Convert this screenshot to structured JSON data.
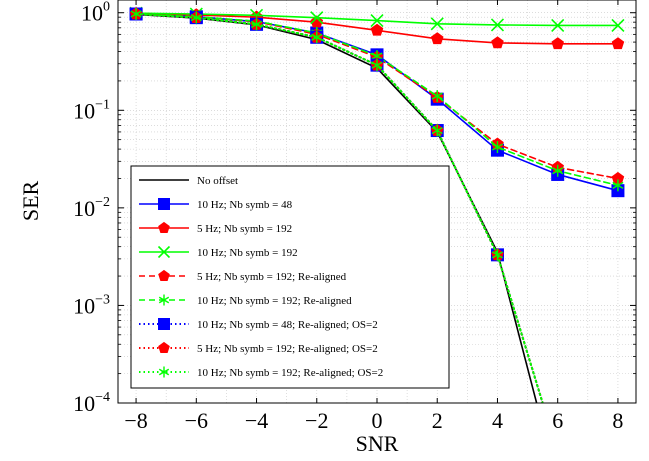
{
  "chart_data": {
    "type": "line",
    "title": "",
    "xlabel": "SNR",
    "ylabel": "SER",
    "xlim": [
      -8.6,
      8.6
    ],
    "ylim": [
      0.0001,
      1.35
    ],
    "yscale": "log",
    "grid": "on (dotted, minor)",
    "legend_position": "bottom-left",
    "x_ticks": [
      -8,
      -6,
      -4,
      -2,
      0,
      2,
      4,
      6,
      8
    ],
    "x_tick_labels": [
      "−8",
      "−6",
      "−4",
      "−2",
      "0",
      "2",
      "4",
      "6",
      "8"
    ],
    "y_ticks": [
      {
        "value": 1,
        "base": "10",
        "exp": "0"
      },
      {
        "value": 0.1,
        "base": "10",
        "exp": "−1"
      },
      {
        "value": 0.01,
        "base": "10",
        "exp": "−2"
      },
      {
        "value": 0.001,
        "base": "10",
        "exp": "−3"
      },
      {
        "value": 0.0001,
        "base": "10",
        "exp": "−4"
      }
    ],
    "x": [
      -8,
      -6,
      -4,
      -2,
      0,
      2,
      4,
      6,
      8
    ],
    "series": [
      {
        "name": "No offset",
        "color": "#000000",
        "dash": "solid",
        "marker": "none",
        "points": [
          [
            -8,
            0.96
          ],
          [
            -6,
            0.88
          ],
          [
            -4,
            0.75
          ],
          [
            -2,
            0.53
          ],
          [
            0,
            0.27
          ],
          [
            2,
            0.06
          ],
          [
            4,
            0.0035
          ],
          [
            5.3,
            0.0001
          ]
        ]
      },
      {
        "name": "10 Hz; Nb symb = 48",
        "color": "#0000ff",
        "dash": "solid",
        "marker": "square",
        "points": [
          [
            -8,
            0.97
          ],
          [
            -6,
            0.91
          ],
          [
            -4,
            0.81
          ],
          [
            -2,
            0.62
          ],
          [
            0,
            0.37
          ],
          [
            2,
            0.13
          ],
          [
            4,
            0.039
          ],
          [
            6,
            0.022
          ],
          [
            8,
            0.015
          ]
        ]
      },
      {
        "name": "5 Hz; Nb symb = 192",
        "color": "#ff0000",
        "dash": "solid",
        "marker": "pentagon",
        "points": [
          [
            -8,
            0.98
          ],
          [
            -6,
            0.95
          ],
          [
            -4,
            0.9
          ],
          [
            -2,
            0.8
          ],
          [
            0,
            0.66
          ],
          [
            2,
            0.54
          ],
          [
            4,
            0.49
          ],
          [
            6,
            0.48
          ],
          [
            8,
            0.48
          ]
        ]
      },
      {
        "name": "10 Hz; Nb symb = 192",
        "color": "#00ff00",
        "dash": "solid",
        "marker": "x",
        "points": [
          [
            -8,
            0.99
          ],
          [
            -6,
            0.97
          ],
          [
            -4,
            0.94
          ],
          [
            -2,
            0.89
          ],
          [
            0,
            0.83
          ],
          [
            2,
            0.77
          ],
          [
            4,
            0.75
          ],
          [
            6,
            0.74
          ],
          [
            8,
            0.74
          ]
        ]
      },
      {
        "name": "5 Hz;  Nb symb = 192; Re-aligned",
        "color": "#ff0000",
        "dash": "dashed",
        "marker": "pentagon",
        "points": [
          [
            -8,
            0.97
          ],
          [
            -6,
            0.91
          ],
          [
            -4,
            0.81
          ],
          [
            -2,
            0.6
          ],
          [
            0,
            0.35
          ],
          [
            2,
            0.135
          ],
          [
            4,
            0.045
          ],
          [
            6,
            0.026
          ],
          [
            8,
            0.02
          ]
        ]
      },
      {
        "name": "10 Hz; Nb symb = 192; Re-aligned",
        "color": "#00ff00",
        "dash": "dashed",
        "marker": "star",
        "points": [
          [
            -8,
            0.97
          ],
          [
            -6,
            0.91
          ],
          [
            -4,
            0.82
          ],
          [
            -2,
            0.62
          ],
          [
            0,
            0.36
          ],
          [
            2,
            0.14
          ],
          [
            4,
            0.042
          ],
          [
            6,
            0.024
          ],
          [
            8,
            0.017
          ]
        ]
      },
      {
        "name": "10 Hz; Nb symb = 48;  Re-aligned; OS=2",
        "color": "#0000ff",
        "dash": "dotted",
        "marker": "square",
        "points": [
          [
            -8,
            0.97
          ],
          [
            -6,
            0.89
          ],
          [
            -4,
            0.76
          ],
          [
            -2,
            0.56
          ],
          [
            0,
            0.29
          ],
          [
            2,
            0.062
          ],
          [
            4,
            0.0033
          ],
          [
            5.5,
            0.0001
          ]
        ]
      },
      {
        "name": "5 Hz;  Nb symb = 192; Re-aligned; OS=2",
        "color": "#ff0000",
        "dash": "dotted",
        "marker": "pentagon",
        "points": [
          [
            -8,
            0.97
          ],
          [
            -6,
            0.89
          ],
          [
            -4,
            0.76
          ],
          [
            -2,
            0.56
          ],
          [
            0,
            0.29
          ],
          [
            2,
            0.062
          ],
          [
            4,
            0.0033
          ],
          [
            5.5,
            0.0001
          ]
        ]
      },
      {
        "name": "10 Hz; Nb symb = 192; Re-aligned; OS=2",
        "color": "#00ff00",
        "dash": "dotted",
        "marker": "star",
        "points": [
          [
            -8,
            0.97
          ],
          [
            -6,
            0.89
          ],
          [
            -4,
            0.76
          ],
          [
            -2,
            0.56
          ],
          [
            0,
            0.29
          ],
          [
            2,
            0.062
          ],
          [
            4,
            0.0033
          ],
          [
            5.5,
            0.0001
          ]
        ]
      }
    ]
  }
}
